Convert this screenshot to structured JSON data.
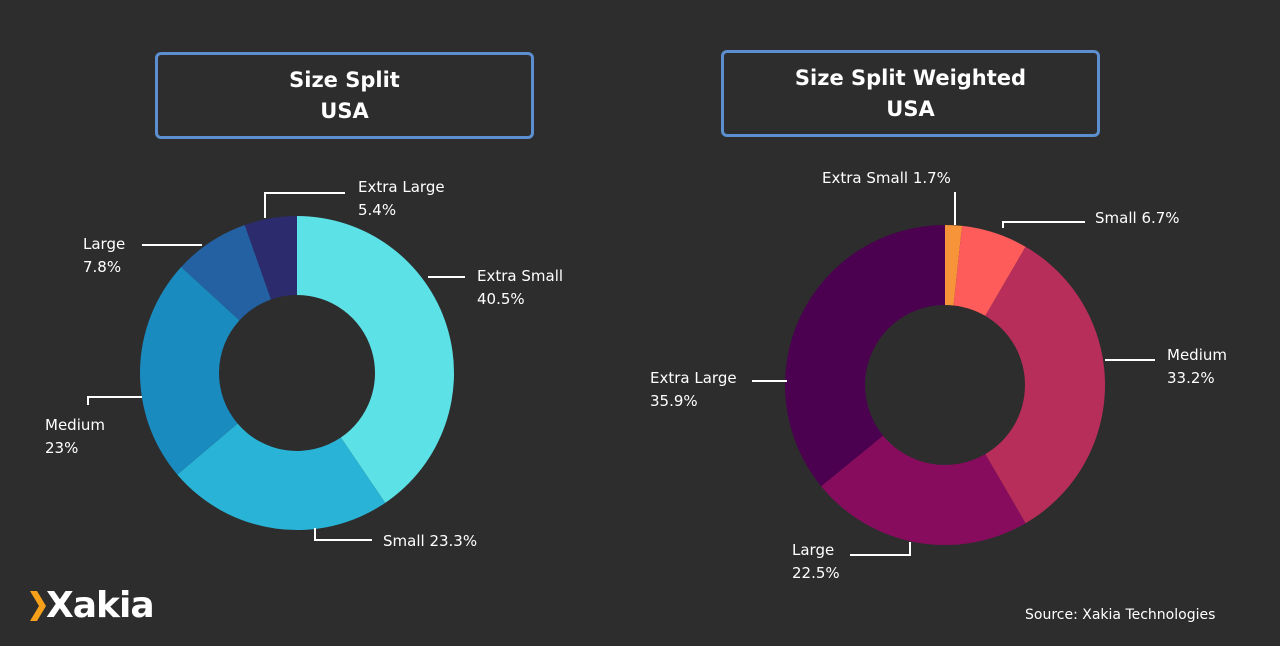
{
  "chart_data": [
    {
      "type": "pie",
      "donut": true,
      "title": [
        "Size Split",
        "USA"
      ],
      "slices": [
        {
          "label": "Extra Small",
          "value": 40.5,
          "text": "40.5%",
          "color": "#5ce1e6"
        },
        {
          "label": "Small",
          "value": 23.3,
          "text": "23.3%",
          "color": "#29b3d6"
        },
        {
          "label": "Medium",
          "value": 23,
          "text": "23%",
          "color": "#1a8bbf"
        },
        {
          "label": "Large",
          "value": 7.8,
          "text": "7.8%",
          "color": "#2361a3"
        },
        {
          "label": "Extra Large",
          "value": 5.4,
          "text": "5.4%",
          "color": "#2c2b6e"
        }
      ]
    },
    {
      "type": "pie",
      "donut": true,
      "title": [
        "Size Split Weighted",
        "USA"
      ],
      "slices": [
        {
          "label": "Extra Small",
          "value": 1.7,
          "text": "1.7%",
          "color": "#f7943a"
        },
        {
          "label": "Small",
          "value": 6.7,
          "text": "6.7%",
          "color": "#fe5b5b"
        },
        {
          "label": "Medium",
          "value": 33.2,
          "text": "33.2%",
          "color": "#b82e5a"
        },
        {
          "label": "Large",
          "value": 22.5,
          "text": "22.5%",
          "color": "#880c5e"
        },
        {
          "label": "Extra Large",
          "value": 35.9,
          "text": "35.9%",
          "color": "#4b0050"
        }
      ]
    }
  ],
  "logo": {
    "text": "Xakia",
    "accent": "#f7a11a"
  },
  "source": "Source: Xakia Technologies",
  "colors": {
    "background": "#2d2d2d",
    "title_border": "#5b8fd0"
  }
}
